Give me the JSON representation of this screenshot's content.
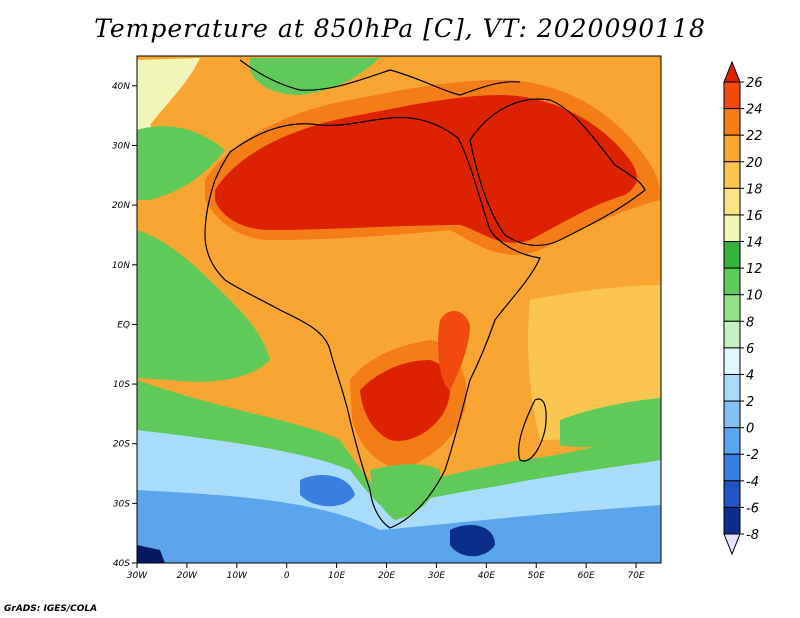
{
  "title": "Temperature at 850hPa [C], VT: 2020090118",
  "credit": "GrADS: IGES/COLA",
  "map": {
    "projection": "lat-lon",
    "lon_range": [
      -30,
      75
    ],
    "lat_range": [
      -40,
      45
    ],
    "lon_ticks": [
      "30W",
      "20W",
      "10W",
      "0",
      "10E",
      "20E",
      "30E",
      "40E",
      "50E",
      "60E",
      "70E"
    ],
    "lat_ticks": [
      "40N",
      "30N",
      "20N",
      "10N",
      "EQ",
      "10S",
      "20S",
      "30S",
      "40S"
    ],
    "variable": "temperature at 850hPa",
    "units": "C"
  },
  "colorbar": {
    "levels": [
      "26",
      "24",
      "22",
      "20",
      "18",
      "16",
      "14",
      "12",
      "10",
      "8",
      "6",
      "4",
      "2",
      "0",
      "-2",
      "-4",
      "-6",
      "-8"
    ],
    "colors": [
      "#dd2200",
      "#f04a0e",
      "#f57d16",
      "#f9a531",
      "#fbc650",
      "#fde386",
      "#f2f5b8",
      "#36b23c",
      "#5fca5a",
      "#96e28c",
      "#c4f2c0",
      "#e3f7ff",
      "#a9dcfb",
      "#83c1f3",
      "#5ba5ec",
      "#3a7fe0",
      "#1f56c4",
      "#0b2e8a",
      "#06185e"
    ]
  }
}
